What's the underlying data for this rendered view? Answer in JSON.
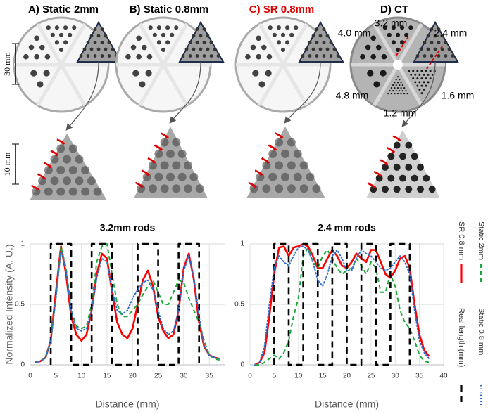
{
  "panels": [
    {
      "label": "A) Static 2mm",
      "color": "#000000"
    },
    {
      "label": "B) Static 0.8mm",
      "color": "#000000"
    },
    {
      "label": "C) SR 0.8mm",
      "color": "#e00000"
    },
    {
      "label": "D) CT",
      "color": "#000000"
    }
  ],
  "scale_bars": [
    "30 mm",
    "10 mm"
  ],
  "ct_annotations": [
    "3.2 mm",
    "4.0 mm",
    "2.4 mm",
    "4.8 mm",
    "1.6 mm",
    "1.2 mm"
  ],
  "chart_data": [
    {
      "type": "line",
      "title": "3.2mm rods",
      "x_label": "Distance (mm)",
      "y_label": "Normalized Intensity (A. U.)",
      "xlim": [
        0,
        38
      ],
      "xticks": [
        0,
        5,
        10,
        15,
        20,
        25,
        30,
        35
      ],
      "ylim": [
        0,
        1
      ],
      "yticks": [
        0,
        0.5,
        1
      ],
      "grid": true,
      "series": [
        {
          "name": "SR 0.8 mm",
          "color": "#ff0000",
          "style": "solid",
          "x": [
            1,
            2,
            3,
            4,
            5,
            6,
            7,
            8,
            9,
            10,
            11,
            12,
            13,
            14,
            15,
            16,
            17,
            18,
            19,
            20,
            21,
            22,
            23,
            24,
            25,
            26,
            27,
            28,
            29,
            30,
            31,
            32,
            33,
            34,
            35,
            36,
            37
          ],
          "values": [
            0.02,
            0.03,
            0.06,
            0.2,
            0.6,
            0.98,
            0.75,
            0.4,
            0.25,
            0.2,
            0.25,
            0.45,
            0.75,
            0.92,
            0.88,
            0.6,
            0.35,
            0.25,
            0.22,
            0.3,
            0.5,
            0.7,
            0.78,
            0.65,
            0.4,
            0.28,
            0.22,
            0.25,
            0.45,
            0.8,
            0.92,
            0.7,
            0.35,
            0.15,
            0.08,
            0.06,
            0.05
          ]
        },
        {
          "name": "Static 2mm",
          "color": "#1aaa3a",
          "style": "dashed",
          "x": [
            1,
            2,
            3,
            4,
            5,
            6,
            7,
            8,
            9,
            10,
            11,
            12,
            13,
            14,
            15,
            16,
            17,
            18,
            19,
            20,
            21,
            22,
            23,
            24,
            25,
            26,
            27,
            28,
            29,
            30,
            31,
            32,
            33,
            34,
            35,
            36,
            37
          ],
          "values": [
            0.02,
            0.03,
            0.06,
            0.2,
            0.55,
            0.98,
            0.8,
            0.45,
            0.32,
            0.3,
            0.32,
            0.5,
            0.85,
            0.98,
            1,
            0.75,
            0.5,
            0.4,
            0.4,
            0.45,
            0.5,
            0.58,
            0.65,
            0.7,
            0.6,
            0.5,
            0.5,
            0.6,
            0.7,
            0.68,
            0.55,
            0.45,
            0.35,
            0.2,
            0.08,
            0.05,
            0.04
          ]
        },
        {
          "name": "Real length (mm)",
          "color": "#000000",
          "style": "longdash",
          "x": [
            4,
            4,
            8,
            8,
            12,
            12,
            16,
            16,
            21,
            21,
            25,
            25,
            29,
            29,
            33,
            33
          ],
          "values": [
            0,
            1,
            1,
            0,
            0,
            1,
            1,
            0,
            0,
            1,
            1,
            0,
            0,
            1,
            1,
            0
          ]
        },
        {
          "name": "Static 0.8 mm",
          "color": "#2e6fd0",
          "style": "dotted",
          "x": [
            1,
            2,
            3,
            4,
            5,
            6,
            7,
            8,
            9,
            10,
            11,
            12,
            13,
            14,
            15,
            16,
            17,
            18,
            19,
            20,
            21,
            22,
            23,
            24,
            25,
            26,
            27,
            28,
            29,
            30,
            31,
            32,
            33,
            34,
            35,
            36,
            37
          ],
          "values": [
            0.02,
            0.03,
            0.06,
            0.2,
            0.55,
            0.95,
            0.78,
            0.45,
            0.3,
            0.28,
            0.3,
            0.45,
            0.72,
            0.88,
            0.85,
            0.62,
            0.45,
            0.42,
            0.45,
            0.55,
            0.62,
            0.68,
            0.7,
            0.62,
            0.45,
            0.3,
            0.25,
            0.28,
            0.45,
            0.78,
            0.9,
            0.72,
            0.4,
            0.15,
            0.08,
            0.06,
            0.05
          ]
        }
      ]
    },
    {
      "type": "line",
      "title": "2.4 mm rods",
      "x_label": "Distance (mm)",
      "xlim": [
        0,
        40
      ],
      "xticks": [
        0,
        5,
        10,
        15,
        20,
        25,
        30,
        35,
        40
      ],
      "ylim": [
        0,
        1
      ],
      "yticks": [
        0,
        0.5,
        1
      ],
      "grid": true,
      "series": [
        {
          "color": "#ff0000",
          "style": "solid",
          "x": [
            1,
            2,
            3,
            4,
            5,
            6,
            7,
            8,
            9,
            10,
            11,
            12,
            13,
            14,
            15,
            16,
            17,
            18,
            19,
            20,
            21,
            22,
            23,
            24,
            25,
            26,
            27,
            28,
            29,
            30,
            31,
            32,
            33,
            34,
            35,
            36,
            37
          ],
          "values": [
            0,
            0.02,
            0.1,
            0.4,
            0.75,
            0.97,
            0.98,
            0.9,
            0.97,
            0.98,
            1,
            0.98,
            0.9,
            0.8,
            0.8,
            0.88,
            0.95,
            0.9,
            0.82,
            0.8,
            0.85,
            0.92,
            0.88,
            0.85,
            0.95,
            0.95,
            0.85,
            0.75,
            0.72,
            0.78,
            0.88,
            0.9,
            0.8,
            0.5,
            0.25,
            0.12,
            0.07
          ]
        },
        {
          "color": "#1aaa3a",
          "style": "dashed",
          "x": [
            1,
            2,
            3,
            4,
            5,
            6,
            7,
            8,
            9,
            10,
            11,
            12,
            13,
            14,
            15,
            16,
            17,
            18,
            19,
            20,
            21,
            22,
            23,
            24,
            25,
            26,
            27,
            28,
            29,
            30,
            31,
            32,
            33,
            34,
            35,
            36,
            37
          ],
          "values": [
            0,
            0,
            0.02,
            0.05,
            0.08,
            0.05,
            0.1,
            0.2,
            0.4,
            0.55,
            0.9,
            0.97,
            0.85,
            0.8,
            0.9,
            0.95,
            0.88,
            0.8,
            0.75,
            0.78,
            0.8,
            0.88,
            0.82,
            0.75,
            0.85,
            0.8,
            0.6,
            0.6,
            0.75,
            0.65,
            0.45,
            0.35,
            0.3,
            0.2,
            0.08,
            0.03,
            0.02
          ]
        },
        {
          "color": "#000000",
          "style": "longdash",
          "x": [
            5,
            5,
            8,
            8,
            11,
            11,
            14,
            14,
            17,
            17,
            20,
            20,
            23,
            23,
            26,
            26,
            29,
            29,
            33,
            33
          ],
          "values": [
            0,
            1,
            1,
            0,
            0,
            1,
            1,
            0,
            0,
            1,
            1,
            0,
            0,
            1,
            1,
            0,
            0,
            1,
            1,
            0
          ]
        },
        {
          "color": "#2e6fd0",
          "style": "dotted",
          "x": [
            1,
            2,
            3,
            4,
            5,
            6,
            7,
            8,
            9,
            10,
            11,
            12,
            13,
            14,
            15,
            16,
            17,
            18,
            19,
            20,
            21,
            22,
            23,
            24,
            25,
            26,
            27,
            28,
            29,
            30,
            31,
            32,
            33,
            34,
            35,
            36,
            37
          ],
          "values": [
            0,
            0.02,
            0.15,
            0.5,
            0.8,
            0.9,
            0.85,
            0.82,
            0.9,
            0.97,
            0.98,
            0.95,
            0.85,
            0.7,
            0.65,
            0.75,
            0.9,
            0.95,
            0.88,
            0.78,
            0.78,
            0.88,
            0.95,
            0.92,
            0.9,
            0.85,
            0.8,
            0.78,
            0.8,
            0.85,
            0.9,
            0.85,
            0.75,
            0.45,
            0.2,
            0.1,
            0.05
          ]
        }
      ]
    }
  ]
}
